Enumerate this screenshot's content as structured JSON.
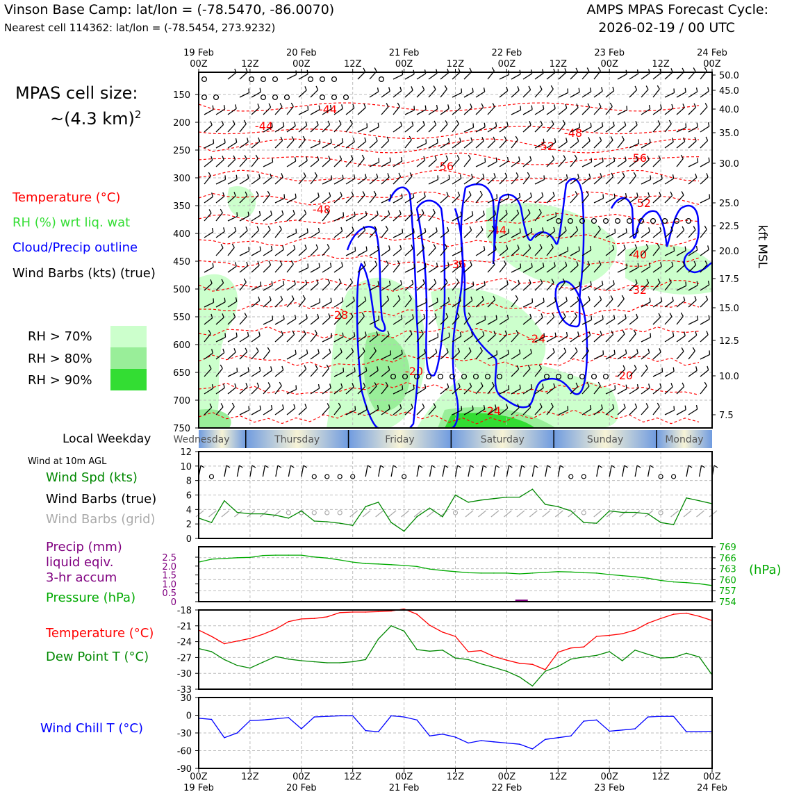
{
  "header": {
    "location": "Vinson Base Camp: lat/lon = (-78.5470, -86.0070)",
    "nearest_cell": "Nearest cell 114362: lat/lon = (-78.5454, 273.9232)",
    "forecast_title": "AMPS MPAS Forecast Cycle:",
    "forecast_cycle": "2026-02-19 / 00 UTC"
  },
  "cell_size": {
    "line1": "MPAS cell size:",
    "line2": "~(4.3 km)",
    "exponent": "2"
  },
  "legend": {
    "temperature": "Temperature (°C)",
    "rh": "RH (%) wrt liq. wat",
    "cloud": "Cloud/Precip outline",
    "wind": "Wind Barbs (kts) (true)",
    "rh70": "RH > 70%",
    "rh80": "RH > 80%",
    "rh90": "RH > 90%"
  },
  "colors": {
    "temperature": "#ff0000",
    "rh": "#33dd33",
    "cloud": "#0000ff",
    "rh70": "#ccffcc",
    "rh80": "#99ee99",
    "rh90": "#33dd33",
    "pressure": "#00aa00",
    "precip": "#800080",
    "windchill": "#0000ff",
    "dewpoint": "#008800"
  },
  "time_axis": {
    "top_labels": [
      {
        "top": "19 Feb",
        "bottom": "00Z"
      },
      {
        "top": "",
        "bottom": "12Z"
      },
      {
        "top": "20 Feb",
        "bottom": "00Z"
      },
      {
        "top": "",
        "bottom": "12Z"
      },
      {
        "top": "21 Feb",
        "bottom": "00Z"
      },
      {
        "top": "",
        "bottom": "12Z"
      },
      {
        "top": "22 Feb",
        "bottom": "00Z"
      },
      {
        "top": "",
        "bottom": "12Z"
      },
      {
        "top": "23 Feb",
        "bottom": "00Z"
      },
      {
        "top": "",
        "bottom": "12Z"
      },
      {
        "top": "24 Feb",
        "bottom": "00Z"
      }
    ]
  },
  "weekday": {
    "label": "Local Weekday",
    "days": [
      "Wednesday",
      "Thursday",
      "Friday",
      "Saturday",
      "Sunday",
      "Monday"
    ]
  },
  "wind_panel": {
    "caption": "Wind at 10m AGL",
    "spd_label": "Wind Spd (kts)",
    "barbs_label": "Wind Barbs (true)",
    "grid_label": "Wind Barbs (grid)"
  },
  "precip_panel": {
    "precip_l1": "Precip (mm)",
    "precip_l2": "liquid eqiv.",
    "precip_l3": "3-hr accum",
    "pressure_label": "Pressure (hPa)",
    "unit": "(hPa)"
  },
  "temp_panel": {
    "temp_label": "Temperature (°C)",
    "dew_label": "Dew Point T (°C)"
  },
  "chill_panel": {
    "label": "Wind Chill T (°C)"
  },
  "chart_data": [
    {
      "type": "heatmap",
      "title": "Time-height cross section",
      "y_left": {
        "label": "",
        "ticks": [
          150,
          200,
          250,
          300,
          350,
          400,
          450,
          500,
          550,
          600,
          650,
          700,
          750
        ]
      },
      "y_right": {
        "label": "kft MSL",
        "ticks": [
          "50.0",
          "45.0",
          "40.0",
          "35.0",
          "30.0",
          "25.0",
          "22.5",
          "20.0",
          "17.5",
          "15.0",
          "12.5",
          "10.0",
          "7.5"
        ]
      },
      "temperature_contour_labels": [
        "-44",
        "-44",
        "-48",
        "-48",
        "-52",
        "-52",
        "-56",
        "-56",
        "-44",
        "-40",
        "-36",
        "-32",
        "-28",
        "-24",
        "-24",
        "-20",
        "-20",
        "-24"
      ]
    },
    {
      "type": "line",
      "name": "wind_speed",
      "ylim": [
        0,
        12
      ],
      "yticks": [
        "0",
        "2",
        "4",
        "6",
        "8",
        "10",
        "12"
      ],
      "x_hours": [
        0,
        3,
        6,
        9,
        12,
        15,
        18,
        21,
        24,
        27,
        30,
        33,
        36,
        39,
        42,
        45,
        48,
        51,
        54,
        57,
        60,
        63,
        66,
        69,
        72,
        75,
        78,
        81,
        84,
        87,
        90,
        93,
        96,
        99,
        102,
        105,
        108,
        111,
        114,
        117,
        120
      ],
      "values": [
        2.8,
        2.2,
        5.2,
        3.6,
        3.4,
        3.4,
        3.2,
        2.8,
        3.8,
        2.4,
        2.3,
        2.1,
        1.8,
        4.4,
        5.0,
        2.2,
        1.0,
        3.0,
        4.2,
        3.0,
        6.0,
        5.0,
        5.3,
        5.5,
        5.7,
        5.7,
        6.8,
        4.7,
        4.4,
        3.8,
        2.2,
        2.1,
        3.8,
        3.6,
        3.6,
        3.4,
        2.2,
        1.9,
        5.6,
        5.2,
        4.8
      ]
    },
    {
      "type": "line",
      "name": "pressure",
      "ylim": [
        754,
        769
      ],
      "yticks_left": [
        "0",
        "0.5",
        "1.0",
        "1.5",
        "2.0",
        "2.5"
      ],
      "yticks_right": [
        "754",
        "757",
        "760",
        "763",
        "766",
        "769"
      ],
      "x_hours": [
        0,
        3,
        6,
        9,
        12,
        15,
        18,
        21,
        24,
        27,
        30,
        33,
        36,
        39,
        42,
        45,
        48,
        51,
        54,
        57,
        60,
        63,
        66,
        69,
        72,
        75,
        78,
        81,
        84,
        87,
        90,
        93,
        96,
        99,
        102,
        105,
        108,
        111,
        114,
        117,
        120
      ],
      "values": [
        764.8,
        765.6,
        765.8,
        766.0,
        766.1,
        766.6,
        766.7,
        766.7,
        766.7,
        766.2,
        765.9,
        765.4,
        764.8,
        764.4,
        764.3,
        764.1,
        763.9,
        763.6,
        762.9,
        762.5,
        762.2,
        761.9,
        761.8,
        761.8,
        761.8,
        761.6,
        761.8,
        762.0,
        762.2,
        762.1,
        761.9,
        761.8,
        761.4,
        761.1,
        760.8,
        760.4,
        759.8,
        759.4,
        759.2,
        758.9,
        758.4
      ]
    },
    {
      "type": "line",
      "name": "temperature_dewpoint",
      "ylim": [
        -33,
        -18
      ],
      "yticks": [
        "-18",
        "-21",
        "-24",
        "-27",
        "-30",
        "-33"
      ],
      "x_hours": [
        0,
        3,
        6,
        9,
        12,
        15,
        18,
        21,
        24,
        27,
        30,
        33,
        36,
        39,
        42,
        45,
        48,
        51,
        54,
        57,
        60,
        63,
        66,
        69,
        72,
        75,
        78,
        81,
        84,
        87,
        90,
        93,
        96,
        99,
        102,
        105,
        108,
        111,
        114,
        117,
        120
      ],
      "series": [
        {
          "name": "Temperature",
          "values": [
            -21.8,
            -23.0,
            -24.4,
            -23.9,
            -23.4,
            -22.6,
            -21.6,
            -20.2,
            -19.7,
            -19.6,
            -19.3,
            -18.5,
            -18.4,
            -18.4,
            -18.3,
            -18.2,
            -17.8,
            -18.8,
            -20.9,
            -22.2,
            -23.0,
            -25.9,
            -25.7,
            -26.8,
            -27.5,
            -28.1,
            -28.3,
            -29.3,
            -26.0,
            -25.2,
            -25.0,
            -23.0,
            -22.8,
            -22.5,
            -21.8,
            -20.5,
            -19.6,
            -18.8,
            -18.6,
            -19.2,
            -20.0
          ]
        },
        {
          "name": "Dew Point",
          "values": [
            -25.3,
            -25.9,
            -27.4,
            -28.5,
            -29.0,
            -27.9,
            -26.8,
            -27.3,
            -27.6,
            -27.8,
            -28.0,
            -28.0,
            -27.8,
            -27.4,
            -23.5,
            -21.0,
            -22.0,
            -25.5,
            -25.8,
            -25.6,
            -27.1,
            -27.4,
            -28.2,
            -28.9,
            -29.6,
            -30.7,
            -32.4,
            -29.6,
            -28.7,
            -27.3,
            -26.9,
            -26.6,
            -25.9,
            -27.6,
            -25.6,
            -26.4,
            -27.1,
            -27.0,
            -26.2,
            -26.9,
            -30.3
          ]
        }
      ]
    },
    {
      "type": "line",
      "name": "wind_chill",
      "ylim": [
        -90,
        30
      ],
      "yticks": [
        "30",
        "0",
        "-30",
        "-60",
        "-90"
      ],
      "x_hours": [
        0,
        3,
        6,
        9,
        12,
        15,
        18,
        21,
        24,
        27,
        30,
        33,
        36,
        39,
        42,
        45,
        48,
        51,
        54,
        57,
        60,
        63,
        66,
        69,
        72,
        75,
        78,
        81,
        84,
        87,
        90,
        93,
        96,
        99,
        102,
        105,
        108,
        111,
        114,
        117,
        120
      ],
      "values": [
        -5,
        -7,
        -38,
        -30,
        -9,
        -8,
        -6,
        -4,
        -23,
        -3,
        -2,
        -1,
        -1,
        -26,
        -28,
        -1,
        -3,
        -8,
        -35,
        -32,
        -37,
        -47,
        -43,
        -45,
        -47,
        -49,
        -57,
        -41,
        -38,
        -35,
        -10,
        -8,
        -27,
        -25,
        -23,
        -3,
        -2,
        -2,
        -28,
        -28,
        -27
      ]
    }
  ]
}
